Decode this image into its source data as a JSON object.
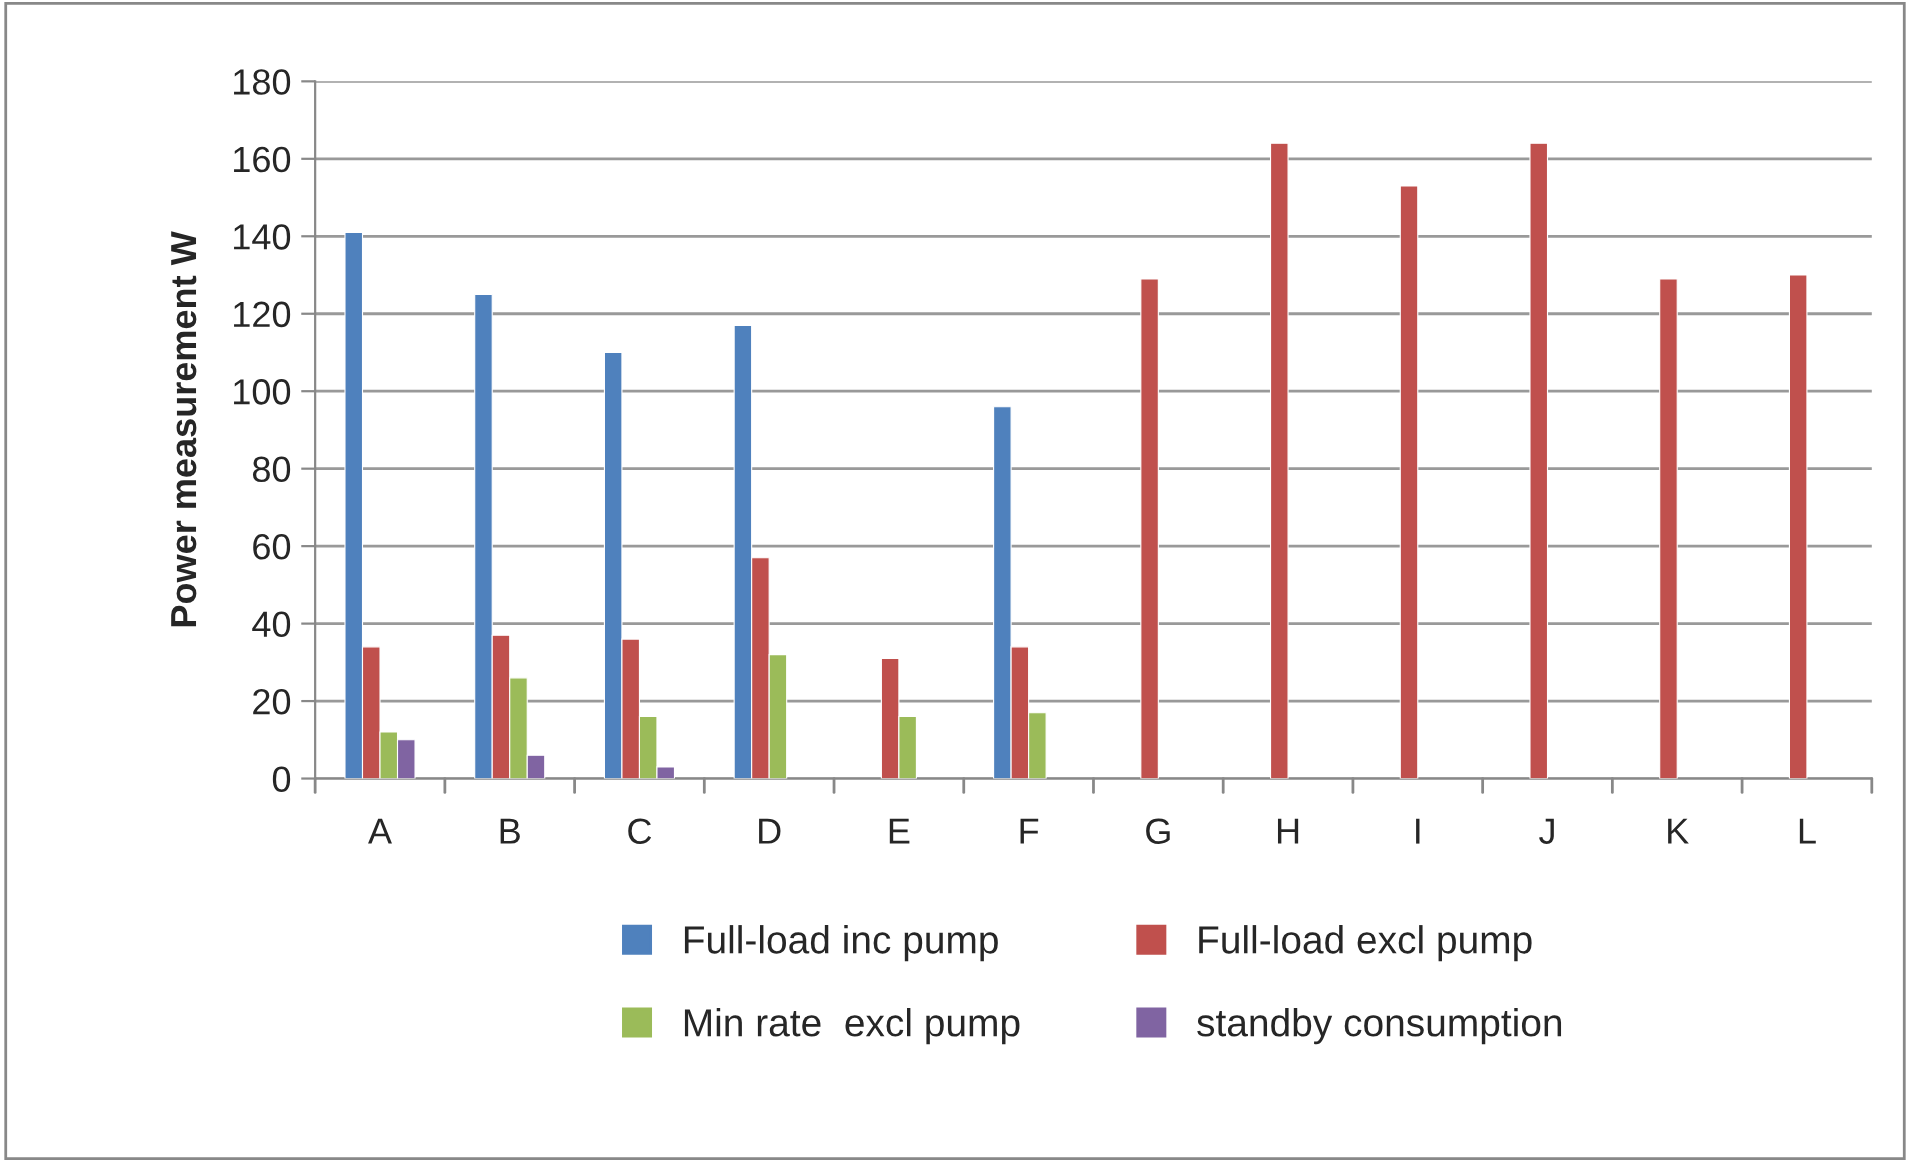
{
  "chart_data": {
    "type": "bar",
    "ylabel": "Power measurement W",
    "categories": [
      "A",
      "B",
      "C",
      "D",
      "E",
      "F",
      "G",
      "H",
      "I",
      "J",
      "K",
      "L"
    ],
    "series": [
      {
        "name": "Full-load inc pump",
        "color": "#4f81bd",
        "values": [
          141,
          125,
          110,
          117,
          null,
          96,
          null,
          null,
          null,
          null,
          null,
          null
        ]
      },
      {
        "name": "Full-load excl pump",
        "color": "#c0504d",
        "values": [
          34,
          37,
          36,
          57,
          31,
          34,
          129,
          164,
          153,
          164,
          129,
          130
        ]
      },
      {
        "name": "Min rate  excl pump",
        "color": "#9bbb59",
        "values": [
          12,
          26,
          16,
          32,
          16,
          17,
          null,
          null,
          null,
          null,
          null,
          null
        ]
      },
      {
        "name": "standby consumption",
        "color": "#8064a2",
        "values": [
          10,
          6,
          3,
          null,
          null,
          null,
          null,
          null,
          null,
          null,
          null,
          null
        ]
      }
    ],
    "ylim": [
      0,
      180
    ],
    "yticks": [
      0,
      20,
      40,
      60,
      80,
      100,
      120,
      140,
      160,
      180
    ],
    "grid": "y",
    "legend": "bottom"
  }
}
